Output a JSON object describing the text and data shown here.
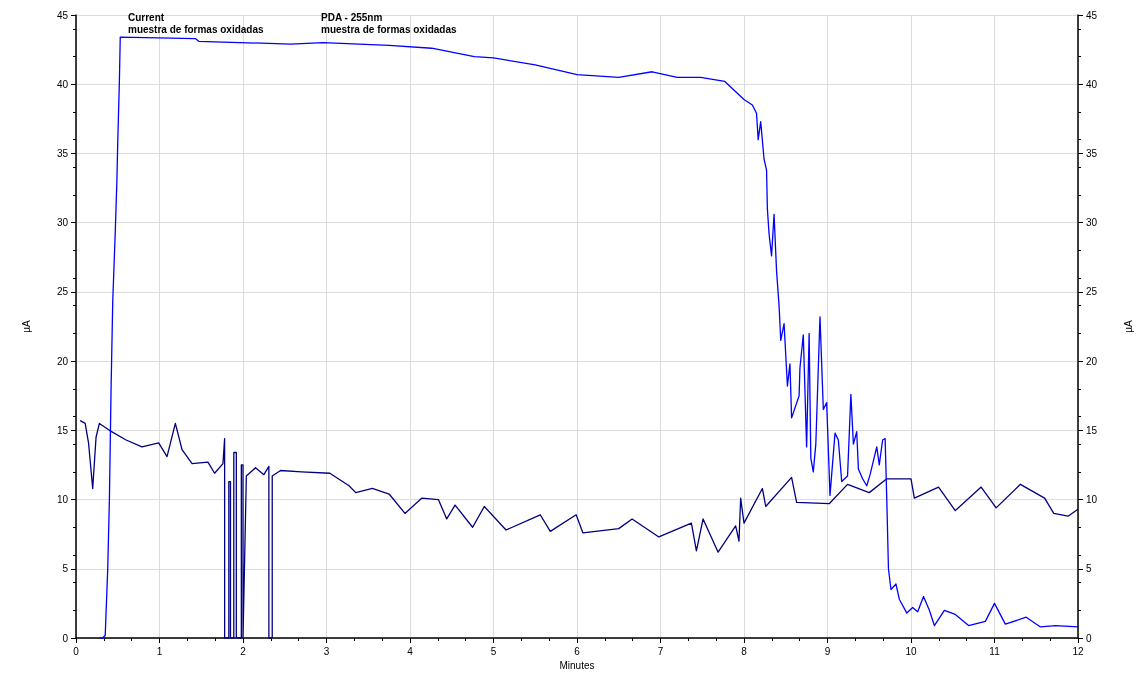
{
  "chart_data": {
    "type": "line",
    "xlabel": "Minutes",
    "ylabel": "µA",
    "y2label": "µA",
    "xlim": [
      0,
      12
    ],
    "xticks": [
      0,
      1,
      2,
      3,
      4,
      5,
      6,
      7,
      8,
      9,
      10,
      11,
      12
    ],
    "ylim": [
      0,
      45
    ],
    "yticks": [
      0,
      5,
      10,
      15,
      20,
      25,
      30,
      35,
      40,
      45
    ],
    "y2lim": [
      0,
      45
    ],
    "y2ticks": [
      0,
      5,
      10,
      15,
      20,
      25,
      30,
      35,
      40,
      45
    ],
    "grid": true,
    "marker": "none",
    "line_style": "solid",
    "annotations": [
      "Current\nmuestra de formas oxidadas",
      "PDA - 255nm\nmuestra de formas oxidadas"
    ],
    "series": [
      {
        "color": "#000080",
        "x": [
          0.05,
          0.11,
          0.15,
          0.2,
          0.24,
          0.28,
          0.4,
          0.6,
          0.79,
          0.99,
          1.09,
          1.19,
          1.27,
          1.39,
          1.58,
          1.66,
          1.76,
          1.78,
          1.78,
          1.83,
          1.83,
          1.85,
          1.85,
          1.89,
          1.89,
          1.92,
          1.92,
          1.98,
          1.98,
          2.0,
          2.0,
          2.04,
          2.15,
          2.25,
          2.31,
          2.31,
          2.35,
          2.35,
          2.45,
          2.7,
          3.04,
          3.27,
          3.35,
          3.55,
          3.75,
          3.94,
          4.14,
          4.34,
          4.44,
          4.54,
          4.75,
          4.89,
          5.15,
          5.56,
          5.68,
          5.99,
          6.07,
          6.5,
          6.66,
          6.98,
          7.37,
          7.43,
          7.51,
          7.69,
          7.9,
          7.94,
          7.96,
          8.0,
          8.22,
          8.26,
          8.57,
          8.63,
          9.02,
          9.24,
          9.5,
          9.71,
          10.0,
          10.04,
          10.33,
          10.53,
          10.84,
          11.02,
          11.31,
          11.6,
          11.71,
          11.88,
          12.0
        ],
        "values": [
          15.7,
          15.5,
          14.1,
          10.8,
          14.5,
          15.5,
          15.0,
          14.3,
          13.8,
          14.1,
          13.1,
          15.5,
          13.6,
          12.6,
          12.7,
          11.9,
          12.6,
          14.4,
          0,
          0,
          11.3,
          11.3,
          0,
          0,
          13.4,
          13.4,
          0,
          0,
          12.5,
          12.5,
          0,
          11.7,
          12.3,
          11.8,
          12.4,
          0,
          0,
          11.7,
          12.1,
          12.0,
          11.9,
          11.0,
          10.5,
          10.8,
          10.4,
          9.0,
          10.1,
          10.0,
          8.6,
          9.6,
          8.0,
          9.5,
          7.8,
          8.9,
          7.7,
          8.9,
          7.6,
          7.9,
          8.6,
          7.3,
          8.3,
          6.3,
          8.6,
          6.2,
          8.1,
          7.0,
          10.1,
          8.3,
          10.8,
          9.5,
          11.6,
          9.8,
          9.7,
          11.1,
          10.5,
          11.5,
          11.5,
          10.1,
          10.9,
          9.2,
          10.9,
          9.4,
          11.1,
          10.1,
          9.0,
          8.8,
          9.3
        ]
      },
      {
        "color": "#0000ff",
        "x": [
          0.28,
          0.32,
          0.35,
          0.38,
          0.4,
          0.42,
          0.44,
          0.47,
          0.49,
          0.5,
          0.52,
          0.53,
          1.43,
          1.47,
          2.57,
          2.96,
          3.75,
          4.26,
          4.77,
          5.0,
          5.5,
          6.0,
          6.5,
          6.9,
          7.2,
          7.37,
          7.48,
          7.77,
          8.0,
          8.1,
          8.15,
          8.17,
          8.2,
          8.24,
          8.27,
          8.28,
          8.3,
          8.33,
          8.36,
          8.39,
          8.42,
          8.44,
          8.48,
          8.52,
          8.55,
          8.57,
          8.66,
          8.67,
          8.71,
          8.75,
          8.78,
          8.8,
          8.83,
          8.86,
          8.91,
          8.95,
          8.99,
          9.03,
          9.09,
          9.13,
          9.17,
          9.24,
          9.28,
          9.31,
          9.35,
          9.37,
          9.42,
          9.47,
          9.51,
          9.59,
          9.62,
          9.66,
          9.69,
          9.71,
          9.73,
          9.76,
          9.82,
          9.86,
          9.95,
          10.02,
          10.08,
          10.15,
          10.22,
          10.28,
          10.4,
          10.53,
          10.69,
          10.89,
          11.0,
          11.13,
          11.38,
          11.55,
          11.73,
          12.0
        ],
        "values": [
          0,
          0,
          0.2,
          5,
          10,
          18,
          24.3,
          29.3,
          33.1,
          35.8,
          40.3,
          43.4,
          43.3,
          43.1,
          42.9,
          43.0,
          42.8,
          42.6,
          42.0,
          41.9,
          41.4,
          40.7,
          40.5,
          40.9,
          40.5,
          40.5,
          40.5,
          40.2,
          38.9,
          38.5,
          37.9,
          36.0,
          37.3,
          34.6,
          33.8,
          31.0,
          29.2,
          27.6,
          30.6,
          26.5,
          24.0,
          21.5,
          22.7,
          18.2,
          19.8,
          15.9,
          17.5,
          19.5,
          21.9,
          13.8,
          22.0,
          13.0,
          12.0,
          14.0,
          23.2,
          16.5,
          17.0,
          10.3,
          14.8,
          14.3,
          11.3,
          11.7,
          17.6,
          14.0,
          14.9,
          12.2,
          11.5,
          11.0,
          11.8,
          13.8,
          12.5,
          14.3,
          14.4,
          10.0,
          5.0,
          3.5,
          3.9,
          2.8,
          1.8,
          2.2,
          1.9,
          3.0,
          2.0,
          0.9,
          2.0,
          1.7,
          0.9,
          1.2,
          2.5,
          1.0,
          1.5,
          0.8,
          0.9,
          0.8
        ]
      }
    ]
  }
}
